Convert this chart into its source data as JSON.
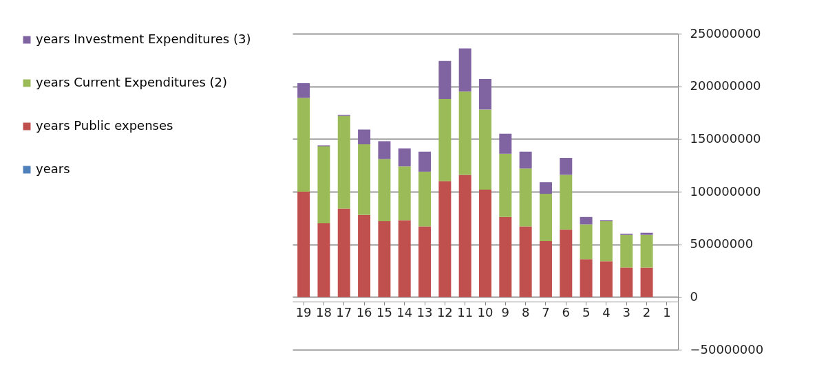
{
  "chart_data": {
    "type": "bar",
    "stacked": true,
    "categories": [
      "19",
      "18",
      "17",
      "16",
      "15",
      "14",
      "13",
      "12",
      "11",
      "10",
      "9",
      "8",
      "7",
      "6",
      "5",
      "4",
      "3",
      "2",
      "1"
    ],
    "series": [
      {
        "name": "years",
        "color": "#4f81bd",
        "values": [
          null,
          null,
          null,
          null,
          null,
          null,
          null,
          null,
          null,
          null,
          null,
          null,
          null,
          null,
          null,
          null,
          null,
          null,
          null
        ]
      },
      {
        "name": "years Public expenses",
        "color": "#c0504d",
        "values": [
          100000000,
          70000000,
          84000000,
          78000000,
          72000000,
          73000000,
          67000000,
          110000000,
          116000000,
          102000000,
          76000000,
          67000000,
          53000000,
          64000000,
          36000000,
          34000000,
          28000000,
          28000000,
          0
        ]
      },
      {
        "name": "years Current Expenditures (2)",
        "color": "#9bbb59",
        "values": [
          89000000,
          73000000,
          88000000,
          67000000,
          59000000,
          51000000,
          52000000,
          78000000,
          79000000,
          76000000,
          60000000,
          55000000,
          45000000,
          52000000,
          33000000,
          38000000,
          31000000,
          31000000,
          0
        ]
      },
      {
        "name": "years Investment Expenditures (3)",
        "color": "#8064a2",
        "values": [
          14000000,
          1000000,
          1000000,
          14000000,
          17000000,
          17000000,
          19000000,
          36000000,
          41000000,
          29000000,
          19000000,
          16000000,
          11000000,
          16000000,
          7000000,
          1000000,
          1000000,
          2000000,
          0
        ]
      }
    ],
    "ylim": [
      -50000000,
      250000000
    ],
    "yticks": [
      -50000000,
      0,
      50000000,
      100000000,
      150000000,
      200000000,
      250000000
    ],
    "grid": "y",
    "legend": "left"
  }
}
